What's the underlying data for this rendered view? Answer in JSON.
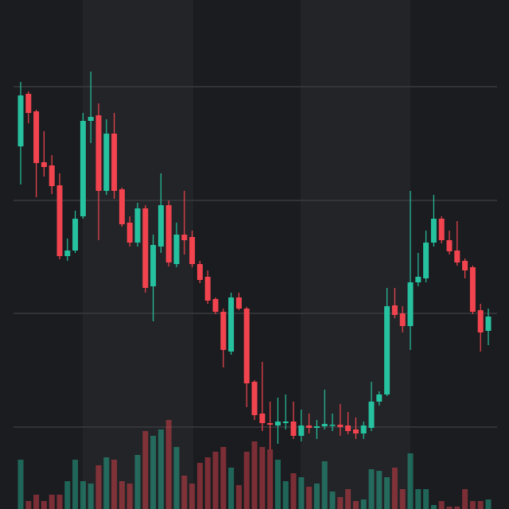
{
  "chart_data": {
    "type": "candlestick",
    "open": [
      456,
      522,
      500,
      436,
      432,
      407,
      318,
      325,
      368,
      488,
      495,
      400,
      472,
      402,
      360,
      335,
      378,
      280,
      330,
      382,
      308,
      345,
      342,
      308,
      292,
      264,
      248,
      198,
      266,
      252,
      160,
      120,
      108,
      105,
      108,
      110,
      92,
      105,
      102,
      104,
      105,
      106,
      105,
      100,
      95,
      102,
      135,
      144,
      256,
      246,
      230,
      285,
      290,
      335,
      365,
      338,
      325,
      312,
      304,
      250,
      224
    ],
    "high": [
      537,
      525,
      502,
      475,
      445,
      422,
      340,
      375,
      498,
      550,
      510,
      490,
      498,
      404,
      368,
      385,
      382,
      345,
      422,
      388,
      360,
      400,
      350,
      312,
      300,
      266,
      252,
      272,
      272,
      254,
      162,
      185,
      135,
      140,
      144,
      135,
      125,
      120,
      112,
      150,
      120,
      132,
      122,
      115,
      110,
      160,
      148,
      278,
      278,
      255,
      400,
      322,
      350,
      395,
      368,
      350,
      362,
      315,
      306,
      258,
      252
    ],
    "low": [
      408,
      485,
      392,
      418,
      396,
      314,
      312,
      322,
      365,
      460,
      338,
      395,
      390,
      355,
      330,
      330,
      272,
      236,
      322,
      305,
      304,
      320,
      304,
      284,
      258,
      245,
      178,
      194,
      250,
      128,
      112,
      98,
      75,
      82,
      100,
      88,
      85,
      95,
      88,
      100,
      98,
      92,
      94,
      88,
      88,
      98,
      130,
      142,
      240,
      222,
      200,
      280,
      285,
      330,
      334,
      320,
      306,
      290,
      245,
      198,
      206
    ],
    "close": [
      520,
      498,
      435,
      430,
      406,
      318,
      325,
      365,
      488,
      493,
      400,
      472,
      400,
      358,
      335,
      378,
      278,
      332,
      382,
      310,
      345,
      338,
      308,
      288,
      262,
      248,
      200,
      266,
      252,
      158,
      118,
      108,
      106,
      110,
      110,
      92,
      105,
      102,
      104,
      107,
      106,
      103,
      98,
      95,
      105,
      135,
      144,
      255,
      244,
      230,
      285,
      292,
      335,
      365,
      338,
      324,
      310,
      300,
      248,
      222,
      242
    ],
    "volume": [
      62,
      10,
      18,
      10,
      18,
      18,
      35,
      62,
      35,
      32,
      55,
      65,
      62,
      35,
      32,
      68,
      98,
      92,
      100,
      112,
      78,
      42,
      32,
      58,
      65,
      72,
      78,
      52,
      30,
      72,
      85,
      78,
      75,
      62,
      35,
      45,
      40,
      28,
      32,
      60,
      22,
      15,
      25,
      10,
      12,
      50,
      48,
      40,
      52,
      25,
      70,
      25,
      25,
      5,
      10,
      3,
      3,
      25,
      10,
      10,
      12
    ],
    "up_color": "#26c2a0",
    "down_color": "#f2444f",
    "ylim": [
      0,
      640
    ],
    "yticks": [
      531,
      388,
      246,
      103
    ],
    "grid": true,
    "volume_ylim": [
      0,
      640
    ]
  }
}
